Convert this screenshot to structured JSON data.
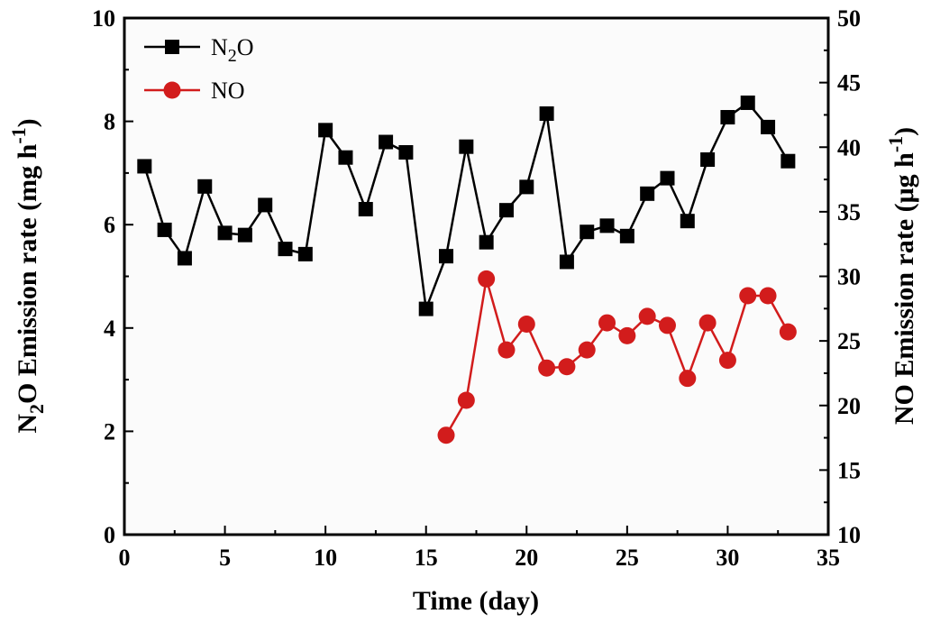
{
  "colors": {
    "n2o": "#000000",
    "no": "#d21c1c",
    "plot_bg": "#fbfbfb"
  },
  "chart_data": {
    "type": "line",
    "xlabel": "Time (day)",
    "xlim": [
      0,
      35
    ],
    "xticks": [
      0,
      5,
      10,
      15,
      20,
      25,
      30,
      35
    ],
    "y_left": {
      "label": {
        "prefix": "N",
        "sub": "2",
        "main": "O Emission rate (mg h",
        "sup": "-1",
        "suffix": ")"
      },
      "ylim": [
        0,
        10
      ],
      "ticks": [
        0,
        2,
        4,
        6,
        8,
        10
      ]
    },
    "y_right": {
      "label": {
        "main": "NO Emission rate (μg h",
        "sup": "-1",
        "suffix": ")"
      },
      "ylim": [
        10,
        50
      ],
      "ticks": [
        10,
        15,
        20,
        25,
        30,
        35,
        40,
        45,
        50
      ]
    },
    "legend_position": "top-left",
    "series": [
      {
        "name": "N2O",
        "legend": {
          "main": "N",
          "sub": "2",
          "tail": "O"
        },
        "axis": "left",
        "marker": "square",
        "x": [
          1,
          2,
          3,
          4,
          5,
          6,
          7,
          8,
          9,
          10,
          11,
          12,
          13,
          14,
          15,
          16,
          17,
          18,
          19,
          20,
          21,
          22,
          23,
          24,
          25,
          26,
          27,
          28,
          29,
          30,
          31,
          32,
          33
        ],
        "y": [
          7.13,
          5.9,
          5.35,
          6.74,
          5.84,
          5.8,
          6.38,
          5.53,
          5.43,
          7.83,
          7.3,
          6.3,
          7.6,
          7.4,
          4.37,
          5.39,
          7.51,
          5.66,
          6.28,
          6.73,
          8.15,
          5.28,
          5.86,
          5.98,
          5.78,
          6.6,
          6.9,
          6.07,
          7.26,
          8.08,
          8.36,
          7.89,
          7.23
        ]
      },
      {
        "name": "NO",
        "legend": {
          "main": "NO",
          "sub": "",
          "tail": ""
        },
        "axis": "right",
        "marker": "circle",
        "x": [
          16,
          17,
          18,
          19,
          20,
          21,
          22,
          23,
          24,
          25,
          26,
          27,
          28,
          29,
          30,
          31,
          32,
          33
        ],
        "y": [
          17.7,
          20.4,
          29.8,
          24.3,
          26.3,
          22.9,
          23.0,
          24.3,
          26.4,
          25.4,
          26.9,
          26.2,
          22.1,
          26.4,
          23.5,
          28.5,
          28.5,
          25.7
        ]
      }
    ]
  }
}
